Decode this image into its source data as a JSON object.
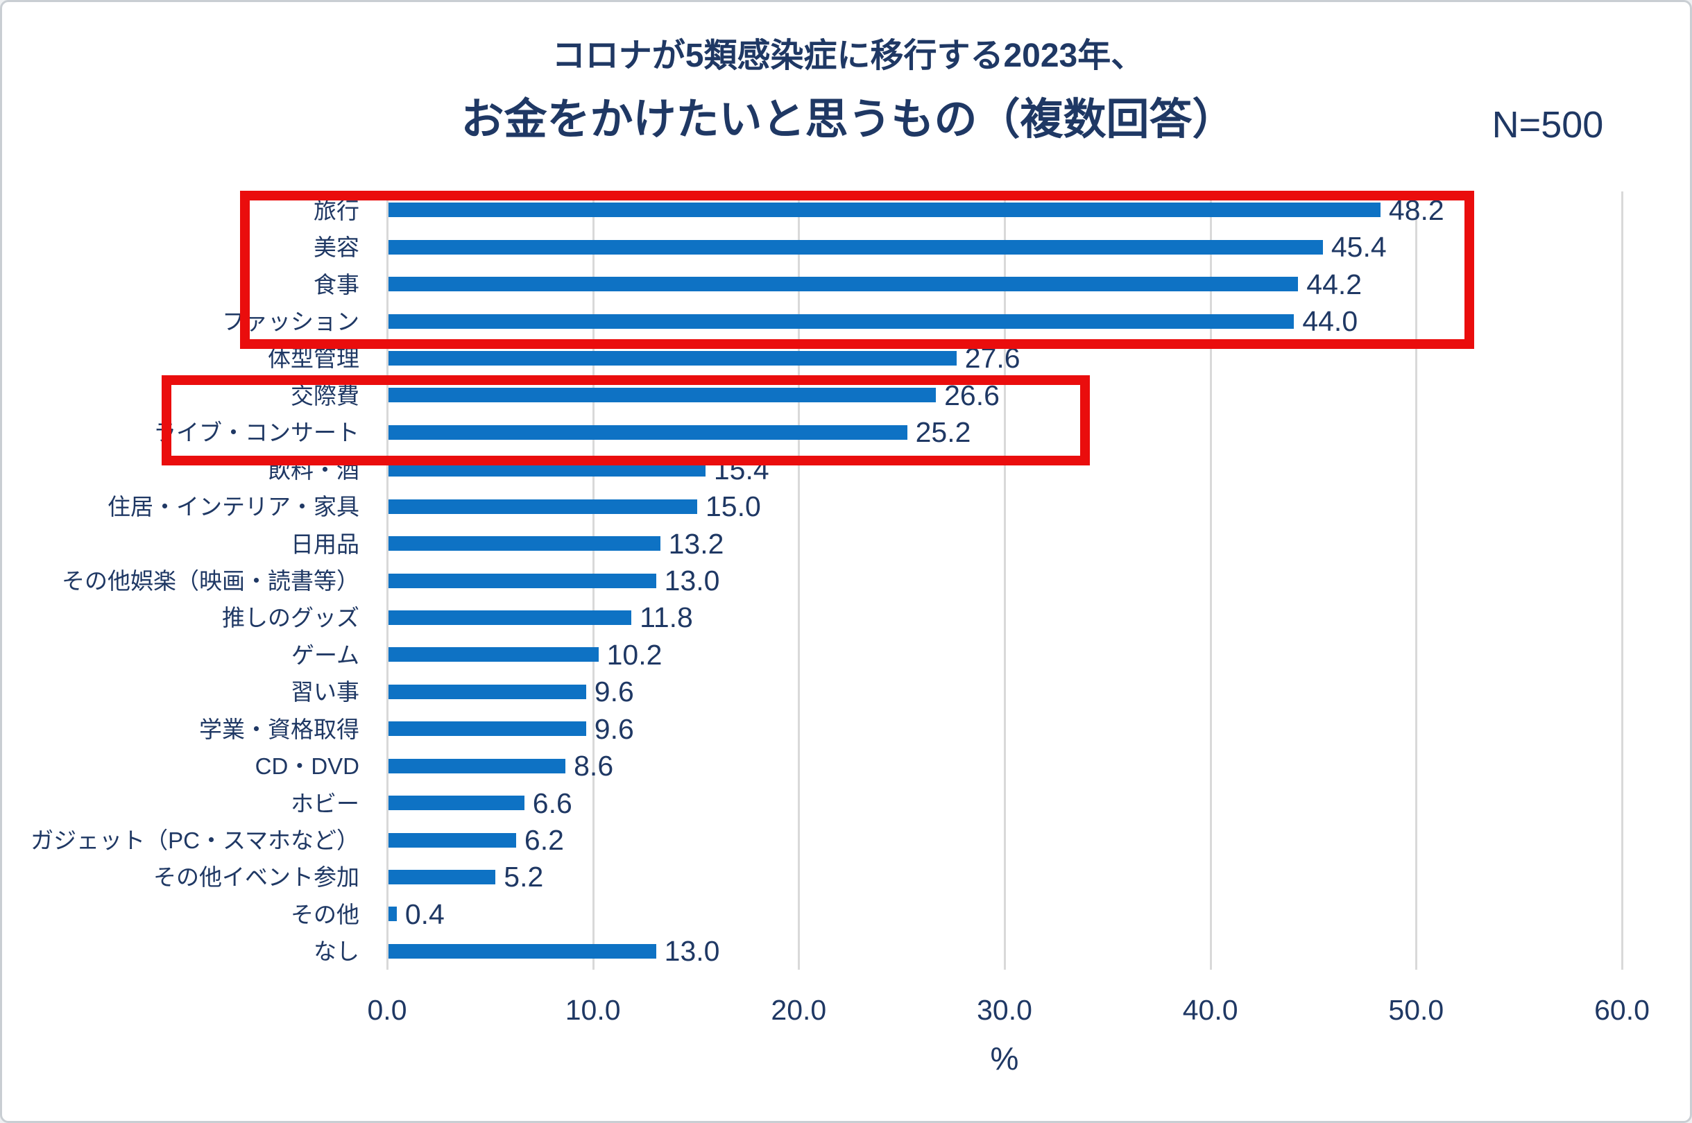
{
  "header": {
    "title_line1": "コロナが5類感染症に移行する2023年、",
    "title_line2": "お金をかけたいと思うもの（複数回答）",
    "sample_size": "N=500"
  },
  "chart_data": {
    "type": "bar",
    "orientation": "horizontal",
    "title": "コロナが5類感染症に移行する2023年、お金をかけたいと思うもの（複数回答）",
    "sample_size": "N=500",
    "categories": [
      "旅行",
      "美容",
      "食事",
      "ファッション",
      "体型管理",
      "交際費",
      "ライブ・コンサート",
      "飲料・酒",
      "住居・インテリア・家具",
      "日用品",
      "その他娯楽（映画・読書等）",
      "推しのグッズ",
      "ゲーム",
      "習い事",
      "学業・資格取得",
      "CD・DVD",
      "ホビー",
      "ガジェット（PC・スマホなど）",
      "その他イベント参加",
      "その他",
      "なし"
    ],
    "values": [
      48.2,
      45.4,
      44.2,
      44.0,
      27.6,
      26.6,
      25.2,
      15.4,
      15.0,
      13.2,
      13.0,
      11.8,
      10.2,
      9.6,
      9.6,
      8.6,
      6.6,
      6.2,
      5.2,
      0.4,
      13.0
    ],
    "value_label_decimals": 1,
    "xlabel": "%",
    "xlim": [
      0,
      60
    ],
    "x_ticks": [
      0.0,
      10.0,
      20.0,
      30.0,
      40.0,
      50.0,
      60.0
    ],
    "grid": "vertical",
    "legend": "none",
    "colors": {
      "bar": "#0e72c4",
      "text": "#1f3864",
      "gridline": "#d9d9d9",
      "annotation": "#ea0d0d"
    },
    "annotations": [
      {
        "name": "highlight-top-four",
        "categories": [
          "旅行",
          "美容",
          "食事",
          "ファッション"
        ]
      },
      {
        "name": "highlight-kousaihi-live",
        "categories": [
          "交際費",
          "ライブ・コンサート"
        ]
      }
    ]
  }
}
